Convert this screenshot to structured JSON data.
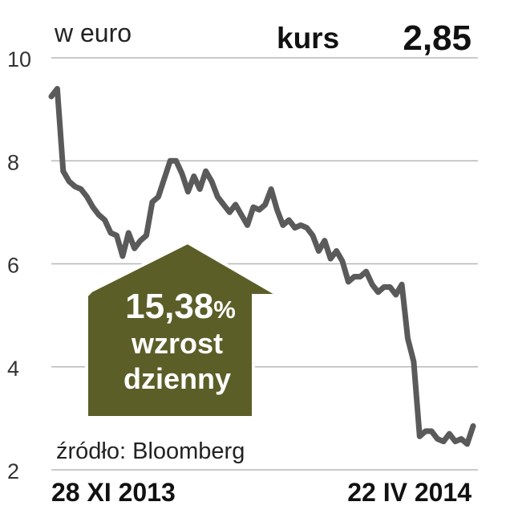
{
  "header": {
    "unit_label": "w euro",
    "price_label": "kurs",
    "price_value": "2,85"
  },
  "badge": {
    "percent": "15,38",
    "percent_sign": "%",
    "line1": "wzrost",
    "line2": "dzienny",
    "color": "#5b5e27"
  },
  "source": "źródło: Bloomberg",
  "chart_data": {
    "type": "line",
    "x_start_label": "28 XI 2013",
    "x_end_label": "22 IV 2014",
    "ylim": [
      2,
      10
    ],
    "yticks": [
      2,
      4,
      6,
      8,
      10
    ],
    "grid": true,
    "line_color": "#5a5a5a",
    "series": [
      {
        "values": [
          9.25,
          9.4,
          7.8,
          7.6,
          7.5,
          7.45,
          7.3,
          7.1,
          6.95,
          6.85,
          6.6,
          6.55,
          6.15,
          6.6,
          6.3,
          6.45,
          6.55,
          7.2,
          7.3,
          7.65,
          8.0,
          8.0,
          7.75,
          7.4,
          7.7,
          7.45,
          7.8,
          7.6,
          7.3,
          7.15,
          7.0,
          7.15,
          6.95,
          6.75,
          7.1,
          7.05,
          7.15,
          7.45,
          7.05,
          6.75,
          6.85,
          6.7,
          6.75,
          6.7,
          6.55,
          6.25,
          6.45,
          6.1,
          6.25,
          6.05,
          5.65,
          5.75,
          5.75,
          5.85,
          5.6,
          5.45,
          5.55,
          5.55,
          5.4,
          5.6,
          4.55,
          4.1,
          2.65,
          2.75,
          2.75,
          2.6,
          2.55,
          2.7,
          2.55,
          2.6,
          2.5,
          2.85
        ]
      }
    ]
  }
}
